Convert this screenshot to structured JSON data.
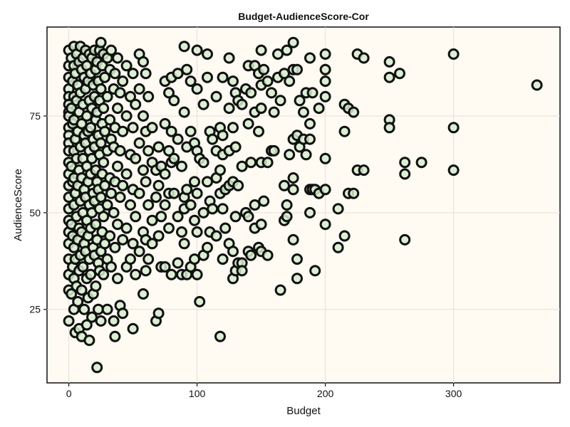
{
  "chart_data": {
    "type": "scatter",
    "title": "Budget-AudienceScore-Cor",
    "xlabel": "Budget",
    "ylabel": "AudienceScore",
    "xlim": [
      -17,
      383
    ],
    "ylim": [
      6,
      98
    ],
    "xticks": [
      0,
      100,
      200,
      300
    ],
    "yticks": [
      25,
      50,
      75
    ],
    "grid": true,
    "marker_fill": "#d3edcb",
    "marker_edge": "#111111",
    "plot_background": "#fffaf2",
    "points": [
      [
        0,
        92
      ],
      [
        0,
        88
      ],
      [
        0,
        85
      ],
      [
        0,
        82
      ],
      [
        0,
        80
      ],
      [
        0,
        78
      ],
      [
        0,
        76
      ],
      [
        0,
        75
      ],
      [
        0,
        72
      ],
      [
        0,
        70
      ],
      [
        0,
        68
      ],
      [
        0,
        66
      ],
      [
        0,
        63
      ],
      [
        0,
        60
      ],
      [
        0,
        57
      ],
      [
        0,
        54
      ],
      [
        0,
        51
      ],
      [
        0,
        48
      ],
      [
        0,
        45
      ],
      [
        0,
        42
      ],
      [
        0,
        38
      ],
      [
        0,
        34
      ],
      [
        0,
        30
      ],
      [
        0,
        22
      ],
      [
        2,
        90
      ],
      [
        2,
        77
      ],
      [
        2,
        62
      ],
      [
        2,
        47
      ],
      [
        2,
        29
      ],
      [
        3,
        84
      ],
      [
        3,
        73
      ],
      [
        3,
        58
      ],
      [
        3,
        44
      ],
      [
        3,
        36
      ],
      [
        4,
        93
      ],
      [
        4,
        88
      ],
      [
        4,
        80
      ],
      [
        4,
        74
      ],
      [
        4,
        66
      ],
      [
        4,
        59
      ],
      [
        4,
        52
      ],
      [
        4,
        41
      ],
      [
        4,
        33
      ],
      [
        4,
        25
      ],
      [
        5,
        86
      ],
      [
        5,
        69
      ],
      [
        5,
        55
      ],
      [
        5,
        38
      ],
      [
        5,
        19
      ],
      [
        6,
        91
      ],
      [
        6,
        79
      ],
      [
        6,
        64
      ],
      [
        6,
        49
      ],
      [
        6,
        31
      ],
      [
        7,
        83
      ],
      [
        7,
        71
      ],
      [
        7,
        57
      ],
      [
        7,
        43
      ],
      [
        7,
        27
      ],
      [
        8,
        89
      ],
      [
        8,
        76
      ],
      [
        8,
        61
      ],
      [
        8,
        46
      ],
      [
        8,
        35
      ],
      [
        8,
        20
      ],
      [
        9,
        93
      ],
      [
        9,
        81
      ],
      [
        9,
        67
      ],
      [
        9,
        53
      ],
      [
        9,
        39
      ],
      [
        10,
        87
      ],
      [
        10,
        73
      ],
      [
        10,
        59
      ],
      [
        10,
        45
      ],
      [
        10,
        30
      ],
      [
        10,
        18
      ],
      [
        11,
        90
      ],
      [
        11,
        78
      ],
      [
        11,
        64
      ],
      [
        11,
        50
      ],
      [
        11,
        36
      ],
      [
        12,
        85
      ],
      [
        12,
        70
      ],
      [
        12,
        56
      ],
      [
        12,
        42
      ],
      [
        12,
        25
      ],
      [
        13,
        92
      ],
      [
        13,
        82
      ],
      [
        13,
        68
      ],
      [
        13,
        54
      ],
      [
        13,
        40
      ],
      [
        14,
        88
      ],
      [
        14,
        75
      ],
      [
        14,
        62
      ],
      [
        14,
        48
      ],
      [
        14,
        33
      ],
      [
        14,
        21
      ],
      [
        15,
        84
      ],
      [
        15,
        71
      ],
      [
        15,
        58
      ],
      [
        15,
        44
      ],
      [
        15,
        28
      ],
      [
        16,
        91
      ],
      [
        16,
        79
      ],
      [
        16,
        66
      ],
      [
        16,
        52
      ],
      [
        16,
        38
      ],
      [
        16,
        17
      ],
      [
        17,
        86
      ],
      [
        17,
        72
      ],
      [
        17,
        60
      ],
      [
        17,
        46
      ],
      [
        17,
        34
      ],
      [
        18,
        90
      ],
      [
        18,
        77
      ],
      [
        18,
        64
      ],
      [
        18,
        50
      ],
      [
        18,
        23
      ],
      [
        19,
        83
      ],
      [
        19,
        69
      ],
      [
        19,
        55
      ],
      [
        19,
        41
      ],
      [
        19,
        29
      ],
      [
        20,
        92
      ],
      [
        20,
        80
      ],
      [
        20,
        67
      ],
      [
        20,
        53
      ],
      [
        20,
        39
      ],
      [
        21,
        87
      ],
      [
        21,
        74
      ],
      [
        21,
        61
      ],
      [
        21,
        47
      ],
      [
        21,
        31
      ],
      [
        22,
        89
      ],
      [
        22,
        76
      ],
      [
        22,
        58
      ],
      [
        22,
        43
      ],
      [
        22,
        10
      ],
      [
        23,
        84
      ],
      [
        23,
        70
      ],
      [
        23,
        56
      ],
      [
        23,
        37
      ],
      [
        23,
        25
      ],
      [
        24,
        92
      ],
      [
        24,
        79
      ],
      [
        24,
        65
      ],
      [
        24,
        51
      ],
      [
        24,
        35
      ],
      [
        25,
        94
      ],
      [
        25,
        82
      ],
      [
        25,
        68
      ],
      [
        25,
        54
      ],
      [
        25,
        40
      ],
      [
        25,
        22
      ],
      [
        26,
        88
      ],
      [
        26,
        73
      ],
      [
        26,
        60
      ],
      [
        26,
        45
      ],
      [
        27,
        91
      ],
      [
        27,
        77
      ],
      [
        27,
        63
      ],
      [
        27,
        49
      ],
      [
        27,
        34
      ],
      [
        28,
        85
      ],
      [
        28,
        71
      ],
      [
        28,
        57
      ],
      [
        28,
        42
      ],
      [
        30,
        90
      ],
      [
        30,
        80
      ],
      [
        30,
        66
      ],
      [
        30,
        52
      ],
      [
        30,
        38
      ],
      [
        30,
        25
      ],
      [
        32,
        87
      ],
      [
        32,
        74
      ],
      [
        32,
        59
      ],
      [
        32,
        44
      ],
      [
        33,
        92
      ],
      [
        33,
        69
      ],
      [
        33,
        55
      ],
      [
        33,
        36
      ],
      [
        35,
        82
      ],
      [
        35,
        67
      ],
      [
        35,
        50
      ],
      [
        35,
        22
      ],
      [
        36,
        86
      ],
      [
        36,
        72
      ],
      [
        36,
        58
      ],
      [
        36,
        41
      ],
      [
        36,
        18
      ],
      [
        38,
        90
      ],
      [
        38,
        77
      ],
      [
        38,
        62
      ],
      [
        38,
        47
      ],
      [
        38,
        33
      ],
      [
        40,
        81
      ],
      [
        40,
        66
      ],
      [
        40,
        54
      ],
      [
        40,
        26
      ],
      [
        42,
        84
      ],
      [
        42,
        71
      ],
      [
        42,
        57
      ],
      [
        42,
        43
      ],
      [
        42,
        24
      ],
      [
        45,
        88
      ],
      [
        45,
        75
      ],
      [
        45,
        60
      ],
      [
        45,
        46
      ],
      [
        45,
        36
      ],
      [
        48,
        80
      ],
      [
        48,
        65
      ],
      [
        48,
        52
      ],
      [
        48,
        38
      ],
      [
        50,
        86
      ],
      [
        50,
        72
      ],
      [
        50,
        56
      ],
      [
        50,
        42
      ],
      [
        50,
        20
      ],
      [
        52,
        78
      ],
      [
        52,
        64
      ],
      [
        52,
        49
      ],
      [
        52,
        34
      ],
      [
        55,
        91
      ],
      [
        55,
        82
      ],
      [
        55,
        68
      ],
      [
        55,
        55
      ],
      [
        55,
        40
      ],
      [
        58,
        89
      ],
      [
        58,
        75
      ],
      [
        58,
        61
      ],
      [
        58,
        45
      ],
      [
        58,
        29
      ],
      [
        60,
        86
      ],
      [
        60,
        71
      ],
      [
        60,
        58
      ],
      [
        60,
        43
      ],
      [
        60,
        35
      ],
      [
        62,
        80
      ],
      [
        62,
        66
      ],
      [
        62,
        52
      ],
      [
        62,
        38
      ],
      [
        65,
        72
      ],
      [
        65,
        63
      ],
      [
        65,
        48
      ],
      [
        65,
        42
      ],
      [
        68,
        61
      ],
      [
        68,
        54
      ],
      [
        68,
        22
      ],
      [
        70,
        67
      ],
      [
        70,
        57
      ],
      [
        70,
        44
      ],
      [
        70,
        24
      ],
      [
        72,
        62
      ],
      [
        72,
        49
      ],
      [
        72,
        36
      ],
      [
        75,
        84
      ],
      [
        75,
        73
      ],
      [
        75,
        60
      ],
      [
        75,
        52
      ],
      [
        75,
        36
      ],
      [
        78,
        81
      ],
      [
        78,
        66
      ],
      [
        78,
        55
      ],
      [
        78,
        46
      ],
      [
        80,
        85
      ],
      [
        80,
        71
      ],
      [
        80,
        63
      ],
      [
        80,
        34
      ],
      [
        82,
        79
      ],
      [
        82,
        64
      ],
      [
        82,
        55
      ],
      [
        85,
        86
      ],
      [
        85,
        69
      ],
      [
        85,
        49
      ],
      [
        85,
        37
      ],
      [
        88,
        62
      ],
      [
        88,
        45
      ],
      [
        88,
        34
      ],
      [
        90,
        93
      ],
      [
        90,
        76
      ],
      [
        90,
        54
      ],
      [
        90,
        51
      ],
      [
        90,
        42
      ],
      [
        92,
        87
      ],
      [
        92,
        67
      ],
      [
        92,
        56
      ],
      [
        92,
        34
      ],
      [
        95,
        84
      ],
      [
        95,
        71
      ],
      [
        95,
        52
      ],
      [
        95,
        36
      ],
      [
        98,
        68
      ],
      [
        98,
        58
      ],
      [
        98,
        48
      ],
      [
        98,
        38
      ],
      [
        100,
        92
      ],
      [
        100,
        82
      ],
      [
        100,
        66
      ],
      [
        100,
        55
      ],
      [
        100,
        45
      ],
      [
        100,
        34
      ],
      [
        102,
        64
      ],
      [
        102,
        27
      ],
      [
        105,
        78
      ],
      [
        105,
        63
      ],
      [
        105,
        50
      ],
      [
        105,
        39
      ],
      [
        108,
        91
      ],
      [
        108,
        85
      ],
      [
        108,
        58
      ],
      [
        108,
        41
      ],
      [
        110,
        71
      ],
      [
        110,
        53
      ],
      [
        110,
        45
      ],
      [
        112,
        69
      ],
      [
        112,
        51
      ],
      [
        115,
        80
      ],
      [
        115,
        66
      ],
      [
        115,
        59
      ],
      [
        115,
        44
      ],
      [
        118,
        72
      ],
      [
        118,
        61
      ],
      [
        118,
        55
      ],
      [
        118,
        18
      ],
      [
        120,
        85
      ],
      [
        120,
        70
      ],
      [
        120,
        65
      ],
      [
        120,
        51
      ],
      [
        120,
        38
      ],
      [
        122,
        56
      ],
      [
        122,
        46
      ],
      [
        125,
        90
      ],
      [
        125,
        77
      ],
      [
        125,
        66
      ],
      [
        125,
        57
      ],
      [
        125,
        42
      ],
      [
        128,
        84
      ],
      [
        128,
        72
      ],
      [
        128,
        58
      ],
      [
        128,
        40
      ],
      [
        128,
        33
      ],
      [
        130,
        81
      ],
      [
        130,
        67
      ],
      [
        130,
        49
      ],
      [
        130,
        35
      ],
      [
        132,
        79
      ],
      [
        132,
        57
      ],
      [
        132,
        37
      ],
      [
        135,
        78
      ],
      [
        135,
        62
      ],
      [
        135,
        37
      ],
      [
        135,
        35
      ],
      [
        138,
        82
      ],
      [
        138,
        50
      ],
      [
        140,
        88
      ],
      [
        140,
        73
      ],
      [
        140,
        49
      ],
      [
        140,
        40
      ],
      [
        142,
        81
      ],
      [
        142,
        63
      ],
      [
        142,
        39
      ],
      [
        145,
        88
      ],
      [
        145,
        76
      ],
      [
        145,
        52
      ],
      [
        145,
        46
      ],
      [
        148,
        86
      ],
      [
        148,
        71
      ],
      [
        148,
        41
      ],
      [
        150,
        92
      ],
      [
        150,
        83
      ],
      [
        150,
        77
      ],
      [
        150,
        63
      ],
      [
        150,
        47
      ],
      [
        150,
        40
      ],
      [
        152,
        87
      ],
      [
        152,
        53
      ],
      [
        155,
        84
      ],
      [
        155,
        63
      ],
      [
        155,
        39
      ],
      [
        158,
        81
      ],
      [
        158,
        66
      ],
      [
        160,
        76
      ],
      [
        160,
        66
      ],
      [
        163,
        91
      ],
      [
        163,
        85
      ],
      [
        165,
        79
      ],
      [
        165,
        30
      ],
      [
        168,
        86
      ],
      [
        168,
        57
      ],
      [
        168,
        48
      ],
      [
        170,
        92
      ],
      [
        170,
        52
      ],
      [
        170,
        49
      ],
      [
        172,
        84
      ],
      [
        172,
        65
      ],
      [
        175,
        94
      ],
      [
        175,
        87
      ],
      [
        175,
        69
      ],
      [
        175,
        59
      ],
      [
        175,
        56
      ],
      [
        175,
        43
      ],
      [
        178,
        87
      ],
      [
        178,
        70
      ],
      [
        178,
        38
      ],
      [
        178,
        33
      ],
      [
        180,
        79
      ],
      [
        180,
        67
      ],
      [
        183,
        76
      ],
      [
        183,
        69
      ],
      [
        185,
        81
      ],
      [
        185,
        65
      ],
      [
        188,
        90
      ],
      [
        188,
        73
      ],
      [
        188,
        69
      ],
      [
        188,
        56
      ],
      [
        188,
        50
      ],
      [
        190,
        81
      ],
      [
        190,
        56
      ],
      [
        192,
        56
      ],
      [
        192,
        35
      ],
      [
        195,
        77
      ],
      [
        195,
        55
      ],
      [
        200,
        91
      ],
      [
        200,
        87
      ],
      [
        200,
        84
      ],
      [
        200,
        80
      ],
      [
        200,
        64
      ],
      [
        200,
        56
      ],
      [
        200,
        47
      ],
      [
        210,
        51
      ],
      [
        210,
        41
      ],
      [
        215,
        78
      ],
      [
        215,
        71
      ],
      [
        215,
        44
      ],
      [
        218,
        77
      ],
      [
        218,
        55
      ],
      [
        222,
        76
      ],
      [
        222,
        55
      ],
      [
        225,
        91
      ],
      [
        225,
        61
      ],
      [
        230,
        90
      ],
      [
        230,
        61
      ],
      [
        250,
        89
      ],
      [
        250,
        85
      ],
      [
        250,
        74
      ],
      [
        250,
        72
      ],
      [
        258,
        86
      ],
      [
        262,
        63
      ],
      [
        262,
        60
      ],
      [
        262,
        43
      ],
      [
        275,
        63
      ],
      [
        300,
        91
      ],
      [
        300,
        72
      ],
      [
        300,
        61
      ],
      [
        365,
        83
      ]
    ]
  }
}
